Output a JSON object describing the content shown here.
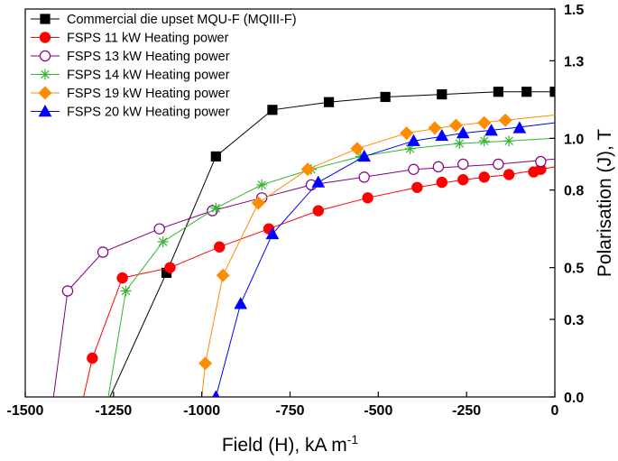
{
  "chart_data": {
    "type": "line",
    "title": "",
    "xlabel": "Field (H), kA m",
    "xlabel_superscript": "-1",
    "ylabel": "Polarisation (J), T",
    "xlim": [
      -1500,
      0
    ],
    "ylim": [
      0,
      1.5
    ],
    "x_ticks": [
      -1500,
      -1250,
      -1000,
      -750,
      -500,
      -250,
      0
    ],
    "y_ticks": [
      0.0,
      0.3,
      0.5,
      0.8,
      1.0,
      1.3,
      1.5
    ],
    "x_tick_labels": [
      "-1500",
      "-1250",
      "-1000",
      "-750",
      "-500",
      "-250",
      "0"
    ],
    "y_tick_labels": [
      "0.0",
      "0.3",
      "0.5",
      "0.8",
      "1.0",
      "1.3",
      "1.5"
    ],
    "legend_position": "top-left",
    "series": [
      {
        "name": "Commercial die upset MQU-F (MQIII-F)",
        "color": "#000000",
        "marker": "square",
        "filled": true,
        "line": [
          [
            -1260,
            0.0
          ],
          [
            -1100,
            0.48
          ],
          [
            -960,
            0.93
          ],
          [
            -800,
            1.11
          ],
          [
            -640,
            1.14
          ],
          [
            -480,
            1.16
          ],
          [
            -320,
            1.17
          ],
          [
            -160,
            1.18
          ],
          [
            -80,
            1.18
          ],
          [
            0,
            1.18
          ]
        ],
        "markers": [
          [
            -1100,
            0.48
          ],
          [
            -960,
            0.93
          ],
          [
            -800,
            1.11
          ],
          [
            -640,
            1.14
          ],
          [
            -480,
            1.16
          ],
          [
            -320,
            1.17
          ],
          [
            -160,
            1.18
          ],
          [
            -80,
            1.18
          ],
          [
            0,
            1.18
          ]
        ]
      },
      {
        "name": "FSPS 11 kW Heating power",
        "color": "#ff0000",
        "marker": "circle",
        "filled": true,
        "line": [
          [
            -1335,
            0.0
          ],
          [
            -1310,
            0.15
          ],
          [
            -1225,
            0.46
          ],
          [
            -1090,
            0.5
          ],
          [
            -950,
            0.58
          ],
          [
            -810,
            0.65
          ],
          [
            -670,
            0.72
          ],
          [
            -530,
            0.77
          ],
          [
            -390,
            0.81
          ],
          [
            -260,
            0.84
          ],
          [
            -130,
            0.86
          ],
          [
            -40,
            0.88
          ],
          [
            0,
            0.89
          ]
        ],
        "markers": [
          [
            -1310,
            0.15
          ],
          [
            -1225,
            0.46
          ],
          [
            -1090,
            0.5
          ],
          [
            -950,
            0.58
          ],
          [
            -810,
            0.65
          ],
          [
            -670,
            0.72
          ],
          [
            -530,
            0.77
          ],
          [
            -390,
            0.81
          ],
          [
            -320,
            0.83
          ],
          [
            -260,
            0.84
          ],
          [
            -200,
            0.85
          ],
          [
            -130,
            0.86
          ],
          [
            -60,
            0.87
          ],
          [
            -40,
            0.88
          ]
        ]
      },
      {
        "name": "FSPS 13 kW Heating power",
        "color": "#800080",
        "marker": "circle",
        "filled": false,
        "line": [
          [
            -1420,
            0.0
          ],
          [
            -1380,
            0.41
          ],
          [
            -1280,
            0.56
          ],
          [
            -1120,
            0.65
          ],
          [
            -970,
            0.72
          ],
          [
            -830,
            0.77
          ],
          [
            -690,
            0.82
          ],
          [
            -540,
            0.85
          ],
          [
            -400,
            0.88
          ],
          [
            -280,
            0.89
          ],
          [
            -160,
            0.9
          ],
          [
            0,
            0.92
          ]
        ],
        "markers": [
          [
            -1380,
            0.41
          ],
          [
            -1280,
            0.56
          ],
          [
            -1120,
            0.65
          ],
          [
            -970,
            0.72
          ],
          [
            -830,
            0.77
          ],
          [
            -690,
            0.82
          ],
          [
            -540,
            0.85
          ],
          [
            -400,
            0.88
          ],
          [
            -330,
            0.89
          ],
          [
            -260,
            0.9
          ],
          [
            -160,
            0.9
          ],
          [
            -40,
            0.91
          ]
        ]
      },
      {
        "name": "FSPS 14 kW Heating power",
        "color": "#32b432",
        "marker": "star",
        "filled": false,
        "line": [
          [
            -1265,
            0.0
          ],
          [
            -1215,
            0.41
          ],
          [
            -1110,
            0.6
          ],
          [
            -960,
            0.73
          ],
          [
            -830,
            0.82
          ],
          [
            -690,
            0.88
          ],
          [
            -550,
            0.93
          ],
          [
            -410,
            0.96
          ],
          [
            -270,
            0.98
          ],
          [
            -130,
            0.99
          ],
          [
            0,
            1.0
          ]
        ],
        "markers": [
          [
            -1215,
            0.41
          ],
          [
            -1110,
            0.6
          ],
          [
            -960,
            0.73
          ],
          [
            -830,
            0.82
          ],
          [
            -690,
            0.88
          ],
          [
            -550,
            0.93
          ],
          [
            -410,
            0.96
          ],
          [
            -270,
            0.98
          ],
          [
            -200,
            0.99
          ],
          [
            -130,
            0.99
          ]
        ]
      },
      {
        "name": "FSPS 19 kW Heating power",
        "color": "#ff8c00",
        "marker": "diamond",
        "filled": true,
        "line": [
          [
            -1000,
            0.0
          ],
          [
            -990,
            0.13
          ],
          [
            -940,
            0.47
          ],
          [
            -840,
            0.75
          ],
          [
            -700,
            0.88
          ],
          [
            -560,
            0.96
          ],
          [
            -420,
            1.02
          ],
          [
            -280,
            1.05
          ],
          [
            -140,
            1.07
          ],
          [
            0,
            1.09
          ]
        ],
        "markers": [
          [
            -990,
            0.13
          ],
          [
            -940,
            0.47
          ],
          [
            -840,
            0.75
          ],
          [
            -700,
            0.88
          ],
          [
            -560,
            0.96
          ],
          [
            -420,
            1.02
          ],
          [
            -340,
            1.04
          ],
          [
            -280,
            1.05
          ],
          [
            -200,
            1.06
          ],
          [
            -140,
            1.07
          ]
        ]
      },
      {
        "name": "FSPS 20 kW Heating power",
        "color": "#0000ff",
        "marker": "triangle",
        "filled": true,
        "line": [
          [
            -960,
            0.0
          ],
          [
            -890,
            0.36
          ],
          [
            -800,
            0.63
          ],
          [
            -670,
            0.83
          ],
          [
            -540,
            0.93
          ],
          [
            -400,
            0.99
          ],
          [
            -260,
            1.02
          ],
          [
            -120,
            1.04
          ],
          [
            0,
            1.06
          ]
        ],
        "markers": [
          [
            -960,
            0.0
          ],
          [
            -890,
            0.36
          ],
          [
            -800,
            0.63
          ],
          [
            -670,
            0.83
          ],
          [
            -540,
            0.93
          ],
          [
            -400,
            0.99
          ],
          [
            -320,
            1.01
          ],
          [
            -260,
            1.02
          ],
          [
            -180,
            1.03
          ],
          [
            -100,
            1.04
          ]
        ]
      }
    ]
  }
}
